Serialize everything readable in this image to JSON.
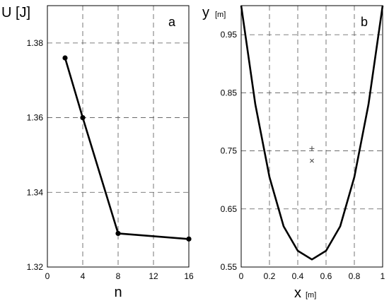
{
  "chart_data": [
    {
      "type": "line",
      "panel_label": "a",
      "xlabel": "n",
      "ylabel": "U [J]",
      "xlim": [
        0,
        16
      ],
      "ylim": [
        1.32,
        1.39
      ],
      "xticks": [
        0,
        4,
        8,
        12,
        16
      ],
      "yticks": [
        1.32,
        1.34,
        1.36,
        1.38
      ],
      "xtick_labels": [
        "0",
        "4",
        "8",
        "12",
        "16"
      ],
      "ytick_labels": [
        "1.32",
        "1.34",
        "1.36",
        "1.38"
      ],
      "grid": true,
      "series": [
        {
          "x": [
            2,
            4,
            8,
            16
          ],
          "y": [
            1.376,
            1.36,
            1.329,
            1.3275
          ],
          "markers": true
        }
      ]
    },
    {
      "type": "line",
      "panel_label": "b",
      "xlabel": "x",
      "xunit": "[m]",
      "ylabel": "y",
      "yunit": "[m]",
      "xlim": [
        0,
        1
      ],
      "ylim": [
        0.55,
        1.0
      ],
      "xticks": [
        0,
        0.2,
        0.4,
        0.6,
        0.8,
        1
      ],
      "yticks": [
        0.55,
        0.65,
        0.75,
        0.85,
        0.95
      ],
      "xtick_labels": [
        "0",
        "0.2",
        "0.4",
        "0.6",
        "0.8",
        "1"
      ],
      "ytick_labels": [
        "0.55",
        "0.65",
        "0.75",
        "0.85",
        "0.95"
      ],
      "grid": true,
      "series": [
        {
          "x": [
            0,
            0.1,
            0.2,
            0.3,
            0.4,
            0.5,
            0.6,
            0.7,
            0.8,
            0.9,
            1.0
          ],
          "y": [
            1.0,
            0.83,
            0.705,
            0.62,
            0.578,
            0.563,
            0.578,
            0.62,
            0.705,
            0.83,
            1.0
          ],
          "markers": false
        }
      ],
      "point_markers": [
        {
          "symbol": "+",
          "x": 0.5,
          "y": 0.754
        },
        {
          "symbol": "x",
          "x": 0.5,
          "y": 0.733
        }
      ]
    }
  ]
}
